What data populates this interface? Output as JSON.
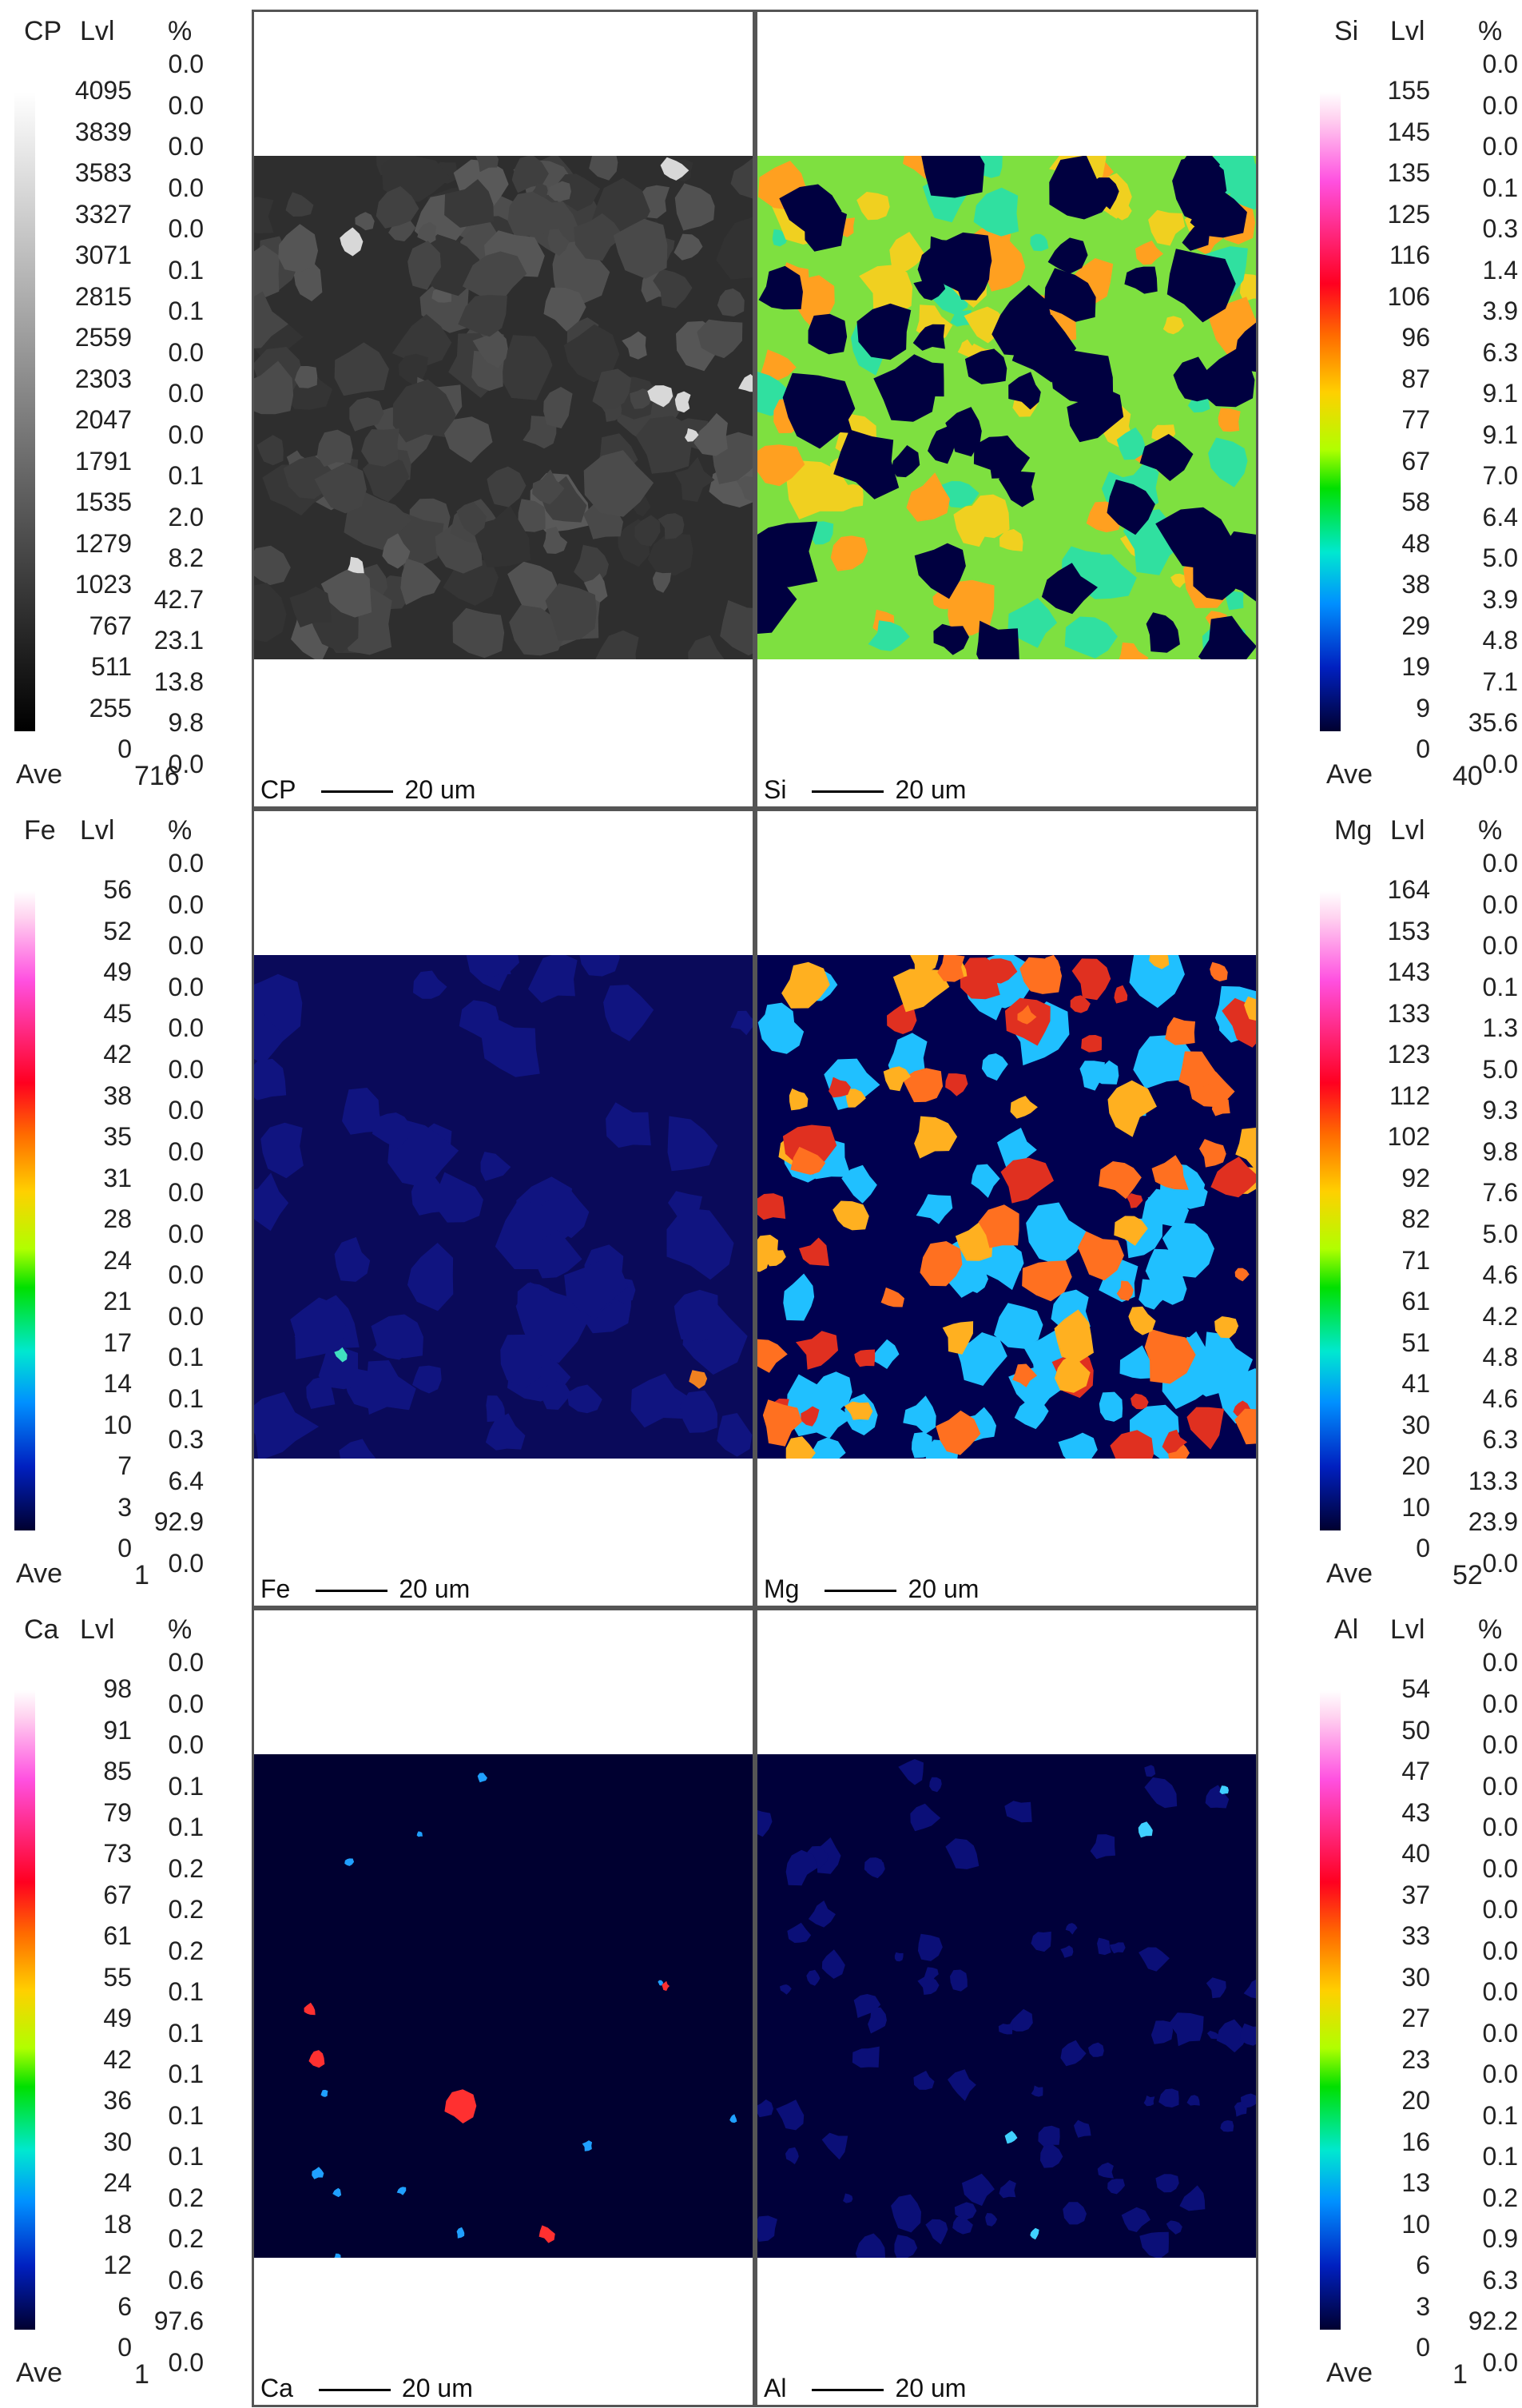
{
  "legends": [
    {
      "id": "cp",
      "element": "CP",
      "lvl_label": "Lvl",
      "pct_label": "%",
      "ave_label": "Ave",
      "ave": "716",
      "levels": [
        "4095",
        "3839",
        "3583",
        "3327",
        "3071",
        "2815",
        "2559",
        "2303",
        "2047",
        "1791",
        "1535",
        "1279",
        "1023",
        "767",
        "511",
        "255",
        "0"
      ],
      "percents": [
        "0.0",
        "0.0",
        "0.0",
        "0.0",
        "0.0",
        "0.1",
        "0.1",
        "0.0",
        "0.0",
        "0.0",
        "0.1",
        "2.0",
        "8.2",
        "42.7",
        "23.1",
        "13.8",
        "9.8",
        "0.0"
      ],
      "scale": "gray"
    },
    {
      "id": "si",
      "element": "Si",
      "lvl_label": "Lvl",
      "pct_label": "%",
      "ave_label": "Ave",
      "ave": "40",
      "levels": [
        "155",
        "145",
        "135",
        "125",
        "116",
        "106",
        "96",
        "87",
        "77",
        "67",
        "58",
        "48",
        "38",
        "29",
        "19",
        "9",
        "0"
      ],
      "percents": [
        "0.0",
        "0.0",
        "0.0",
        "0.1",
        "0.3",
        "1.4",
        "3.9",
        "6.3",
        "9.1",
        "9.1",
        "7.0",
        "6.4",
        "5.0",
        "3.9",
        "4.8",
        "7.1",
        "35.6",
        "0.0"
      ],
      "scale": "rainbow"
    },
    {
      "id": "fe",
      "element": "Fe",
      "lvl_label": "Lvl",
      "pct_label": "%",
      "ave_label": "Ave",
      "ave": "1",
      "levels": [
        "56",
        "52",
        "49",
        "45",
        "42",
        "38",
        "35",
        "31",
        "28",
        "24",
        "21",
        "17",
        "14",
        "10",
        "7",
        "3",
        "0"
      ],
      "percents": [
        "0.0",
        "0.0",
        "0.0",
        "0.0",
        "0.0",
        "0.0",
        "0.0",
        "0.0",
        "0.0",
        "0.0",
        "0.0",
        "0.0",
        "0.1",
        "0.1",
        "0.3",
        "6.4",
        "92.9",
        "0.0"
      ],
      "scale": "rainbow"
    },
    {
      "id": "mg",
      "element": "Mg",
      "lvl_label": "Lvl",
      "pct_label": "%",
      "ave_label": "Ave",
      "ave": "52",
      "levels": [
        "164",
        "153",
        "143",
        "133",
        "123",
        "112",
        "102",
        "92",
        "82",
        "71",
        "61",
        "51",
        "41",
        "30",
        "20",
        "10",
        "0"
      ],
      "percents": [
        "0.0",
        "0.0",
        "0.0",
        "0.1",
        "1.3",
        "5.0",
        "9.3",
        "9.8",
        "7.6",
        "5.0",
        "4.6",
        "4.2",
        "4.8",
        "4.6",
        "6.3",
        "13.3",
        "23.9",
        "0.0"
      ],
      "scale": "rainbow"
    },
    {
      "id": "ca",
      "element": "Ca",
      "lvl_label": "Lvl",
      "pct_label": "%",
      "ave_label": "Ave",
      "ave": "1",
      "levels": [
        "98",
        "91",
        "85",
        "79",
        "73",
        "67",
        "61",
        "55",
        "49",
        "42",
        "36",
        "30",
        "24",
        "18",
        "12",
        "6",
        "0"
      ],
      "percents": [
        "0.0",
        "0.0",
        "0.0",
        "0.1",
        "0.1",
        "0.2",
        "0.2",
        "0.2",
        "0.1",
        "0.1",
        "0.1",
        "0.1",
        "0.1",
        "0.2",
        "0.2",
        "0.6",
        "97.6",
        "0.0"
      ],
      "scale": "rainbow"
    },
    {
      "id": "al",
      "element": "Al",
      "lvl_label": "Lvl",
      "pct_label": "%",
      "ave_label": "Ave",
      "ave": "1",
      "levels": [
        "54",
        "50",
        "47",
        "43",
        "40",
        "37",
        "33",
        "30",
        "27",
        "23",
        "20",
        "16",
        "13",
        "10",
        "6",
        "3",
        "0"
      ],
      "percents": [
        "0.0",
        "0.0",
        "0.0",
        "0.0",
        "0.0",
        "0.0",
        "0.0",
        "0.0",
        "0.0",
        "0.0",
        "0.0",
        "0.1",
        "0.1",
        "0.2",
        "0.9",
        "6.3",
        "92.2",
        "0.0"
      ],
      "scale": "rainbow"
    }
  ],
  "panels": [
    {
      "id": "cp",
      "label": "CP",
      "scale": "20 um",
      "style": "bse"
    },
    {
      "id": "si",
      "label": "Si",
      "scale": "20 um",
      "style": "si"
    },
    {
      "id": "fe",
      "label": "Fe",
      "scale": "20 um",
      "style": "fe"
    },
    {
      "id": "mg",
      "label": "Mg",
      "scale": "20 um",
      "style": "mg"
    },
    {
      "id": "ca",
      "label": "Ca",
      "scale": "20 um",
      "style": "ca"
    },
    {
      "id": "al",
      "label": "Al",
      "scale": "20 um",
      "style": "al"
    }
  ]
}
